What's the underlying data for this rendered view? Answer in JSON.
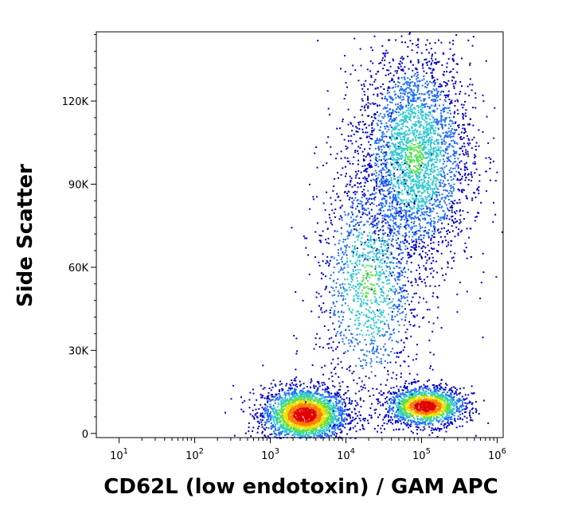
{
  "chart_data": {
    "type": "scatter",
    "subtype": "flow-cytometry density dot plot",
    "xlabel": "CD62L (low endotoxin) / GAM APC",
    "ylabel": "Side Scatter",
    "x_scale": "log",
    "xlim": [
      5,
      1200000
    ],
    "ylim": [
      -1500,
      145000
    ],
    "x_ticks": [
      {
        "value": 10,
        "base": "10",
        "exp": "1"
      },
      {
        "value": 100,
        "base": "10",
        "exp": "2"
      },
      {
        "value": 1000,
        "base": "10",
        "exp": "3"
      },
      {
        "value": 10000,
        "base": "10",
        "exp": "4"
      },
      {
        "value": 100000,
        "base": "10",
        "exp": "5"
      },
      {
        "value": 1000000,
        "base": "10",
        "exp": "6"
      }
    ],
    "y_ticks": [
      {
        "value": 0,
        "label": "0"
      },
      {
        "value": 30000,
        "label": "30K"
      },
      {
        "value": 60000,
        "label": "60K"
      },
      {
        "value": 90000,
        "label": "90K"
      },
      {
        "value": 120000,
        "label": "120K"
      }
    ],
    "populations": [
      {
        "x_center": 2800,
        "y_center": 7000,
        "x_spread_log10": 0.28,
        "y_spread": 5000,
        "points": 2600,
        "peak_color": "#e00000"
      },
      {
        "x_center": 110000,
        "y_center": 10000,
        "x_spread_log10": 0.26,
        "y_spread": 3500,
        "points": 1700,
        "peak_color": "#e03000"
      },
      {
        "x_center": 80000,
        "y_center": 100000,
        "x_spread_log10": 0.38,
        "y_spread": 20000,
        "points": 3200,
        "peak_color": "#40c0c0"
      },
      {
        "x_center": 20000,
        "y_center": 55000,
        "x_spread_log10": 0.35,
        "y_spread": 22000,
        "points": 1400,
        "peak_color": "#1060ff"
      }
    ],
    "color_scale": [
      "#0000c8",
      "#1e6cff",
      "#30c8d0",
      "#58e050",
      "#f0e000",
      "#ff7a00",
      "#e00000"
    ],
    "grid": false,
    "legend": "none"
  }
}
